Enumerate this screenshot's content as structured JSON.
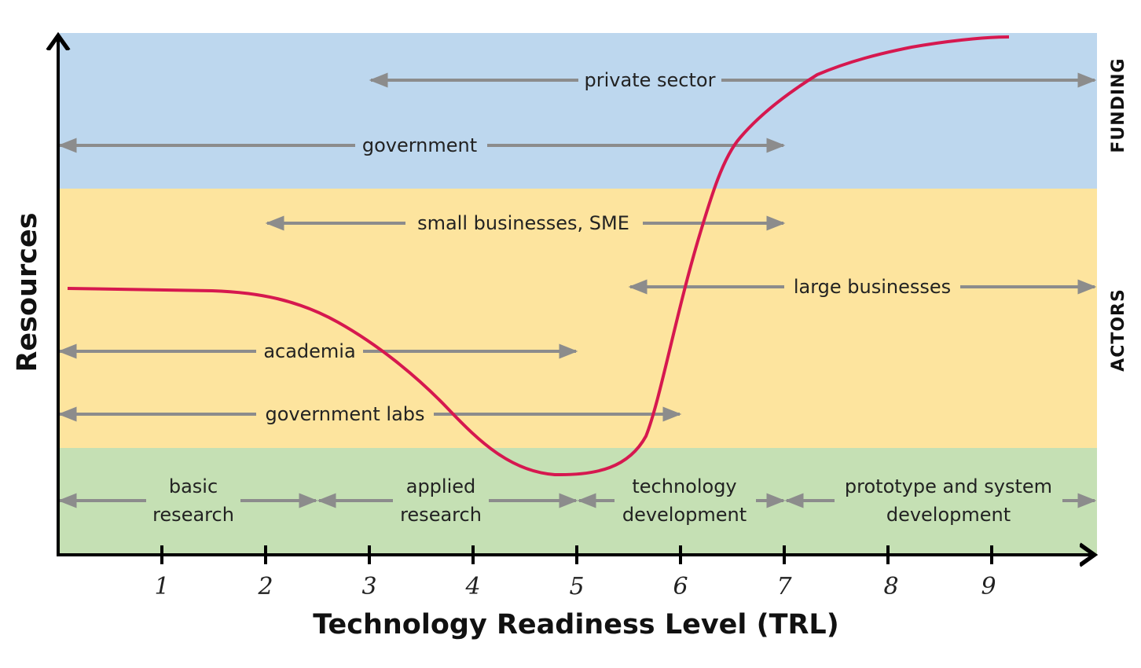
{
  "axes": {
    "x_title": "Technology Readiness Level (TRL)",
    "y_title": "Resources",
    "ticks": [
      "1",
      "2",
      "3",
      "4",
      "5",
      "6",
      "7",
      "8",
      "9"
    ]
  },
  "bands": {
    "funding": {
      "label": "FUNDING",
      "color": "#bdd7ee"
    },
    "actors": {
      "label": "ACTORS",
      "color": "#fde49e"
    },
    "stages": {
      "color": "#c5e0b4"
    }
  },
  "funding_arrows": {
    "private": "private sector",
    "government": "government"
  },
  "actor_arrows": {
    "sme": "small businesses, SME",
    "large": "large businesses",
    "academia": "academia",
    "labs": "government labs"
  },
  "stage_arrows": {
    "basic_1": "basic",
    "basic_2": "research",
    "applied_1": "applied",
    "applied_2": "research",
    "techdev_1": "technology",
    "techdev_2": "development",
    "proto_1": "prototype and system",
    "proto_2": "development"
  },
  "colors": {
    "curve": "#d6184f",
    "arrow": "#8c8c8c",
    "axis": "#000000"
  }
}
